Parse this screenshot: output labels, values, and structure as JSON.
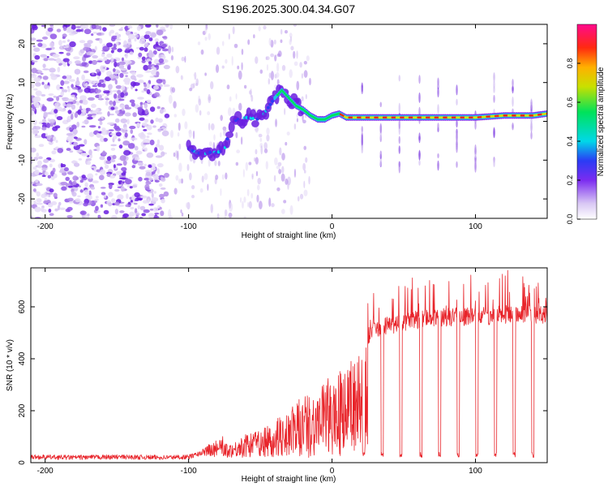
{
  "title": "S196.2025.300.04.34.G07",
  "colors": {
    "snr_line": "#e8242a",
    "axis": "#000000",
    "background": "#ffffff"
  },
  "chart_data": [
    {
      "type": "heatmap",
      "xlabel": "Height of straight line (km)",
      "ylabel": "Frequency (Hz)",
      "xlim": [
        -210,
        150
      ],
      "ylim": [
        -25,
        25
      ],
      "xticks": [
        "-200",
        "-100",
        "0",
        "100"
      ],
      "yticks": [
        "20",
        "10",
        "0",
        "-10",
        "-20"
      ],
      "colorbar": {
        "label": "Normalized spectral amplitude",
        "range": [
          0,
          1
        ],
        "ticks": [
          "0.0",
          "0.2",
          "0.4",
          "0.6",
          "0.8"
        ]
      },
      "ridge": {
        "x": [
          -100,
          -95,
          -90,
          -85,
          -80,
          -75,
          -70,
          -60,
          -50,
          -40,
          -35,
          -30,
          -25,
          -20,
          -15,
          -10,
          -5,
          0,
          5,
          10,
          20,
          40,
          60,
          80,
          100,
          120,
          140,
          150
        ],
        "freq": [
          -7,
          -8,
          -8.5,
          -8,
          -8,
          -7.5,
          0,
          1,
          0.5,
          6,
          8,
          6,
          4,
          3,
          1.5,
          0.5,
          0.5,
          1.5,
          2,
          1,
          1,
          1,
          1,
          1,
          1,
          1.5,
          1.5,
          2
        ]
      }
    },
    {
      "type": "line",
      "xlabel": "Height of straight line (km)",
      "ylabel": "SNR (10 * v/v)",
      "xlim": [
        -210,
        150
      ],
      "ylim": [
        0,
        750
      ],
      "xticks": [
        "-200",
        "-100",
        "0",
        "100"
      ],
      "yticks": [
        "0",
        "200",
        "400",
        "600"
      ],
      "series": [
        {
          "name": "SNR",
          "x": [
            -210,
            -180,
            -150,
            -120,
            -100,
            -95,
            -90,
            -85,
            -80,
            -75,
            -70,
            -65,
            -60,
            -55,
            -50,
            -45,
            -40,
            -35,
            -30,
            -25,
            -20,
            -15,
            -10,
            -5,
            0,
            5,
            10,
            15,
            20,
            25,
            30,
            40,
            50,
            60,
            70,
            80,
            90,
            100,
            110,
            120,
            130,
            140,
            150
          ],
          "values": [
            22,
            20,
            22,
            20,
            22,
            30,
            40,
            60,
            80,
            70,
            60,
            80,
            100,
            110,
            130,
            150,
            160,
            180,
            200,
            240,
            270,
            280,
            290,
            320,
            360,
            380,
            400,
            420,
            460,
            490,
            510,
            530,
            540,
            550,
            560,
            560,
            560,
            565,
            565,
            570,
            575,
            570,
            570
          ]
        }
      ],
      "dropouts_x": [
        22,
        35,
        48,
        62,
        75,
        88,
        101,
        114,
        127,
        140
      ]
    }
  ]
}
